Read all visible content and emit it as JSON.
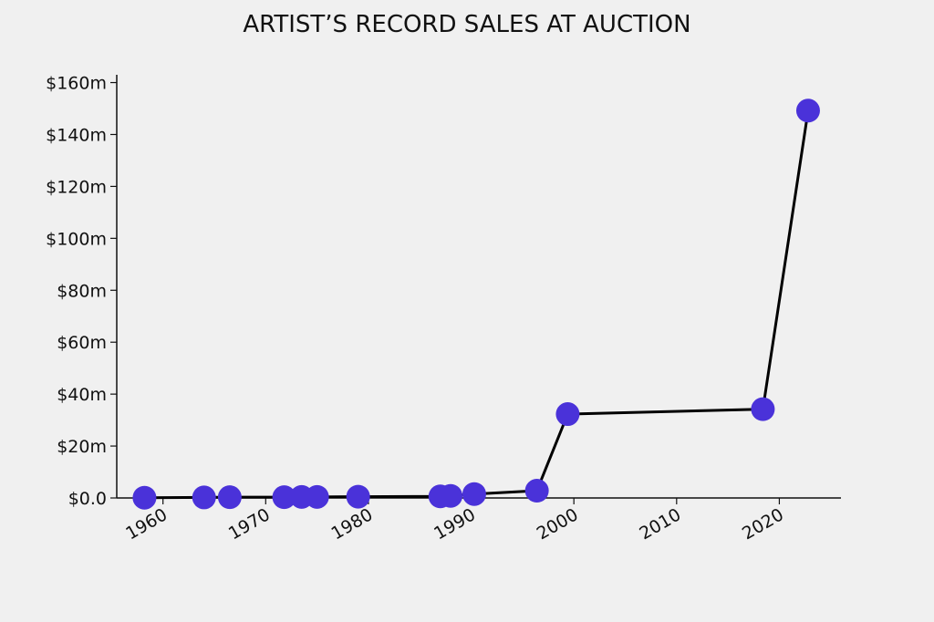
{
  "chart_data": {
    "type": "line",
    "title": "ARTIST’S RECORD SALES AT AUCTION",
    "xlabel": "",
    "ylabel": "",
    "xlim": [
      1955.5,
      2026
    ],
    "ylim": [
      0,
      163
    ],
    "xticks": [
      1960,
      1970,
      1980,
      1990,
      2000,
      2010,
      2020
    ],
    "xtick_labels": [
      "1960",
      "1970",
      "1980",
      "1990",
      "2000",
      "2010",
      "2020"
    ],
    "yticks": [
      0,
      20,
      40,
      60,
      80,
      100,
      120,
      140,
      160
    ],
    "ytick_labels": [
      "$0.0",
      "$20m",
      "$40m",
      "$60m",
      "$80m",
      "$100m",
      "$120m",
      "$140m",
      "$160m"
    ],
    "grid": false,
    "legend": "none",
    "series": [
      {
        "color": "#4a32d9",
        "line_color": "#000000",
        "x": [
          1958.2,
          1964,
          1966.5,
          1971.8,
          1973.5,
          1975,
          1979,
          1987,
          1988,
          1990.3,
          1996.4,
          1999.4,
          2018.4,
          2022.8
        ],
        "y": [
          0.1,
          0.2,
          0.3,
          0.3,
          0.4,
          0.4,
          0.5,
          0.6,
          0.8,
          1.5,
          2.8,
          32.3,
          34.2,
          149.2
        ]
      }
    ]
  }
}
